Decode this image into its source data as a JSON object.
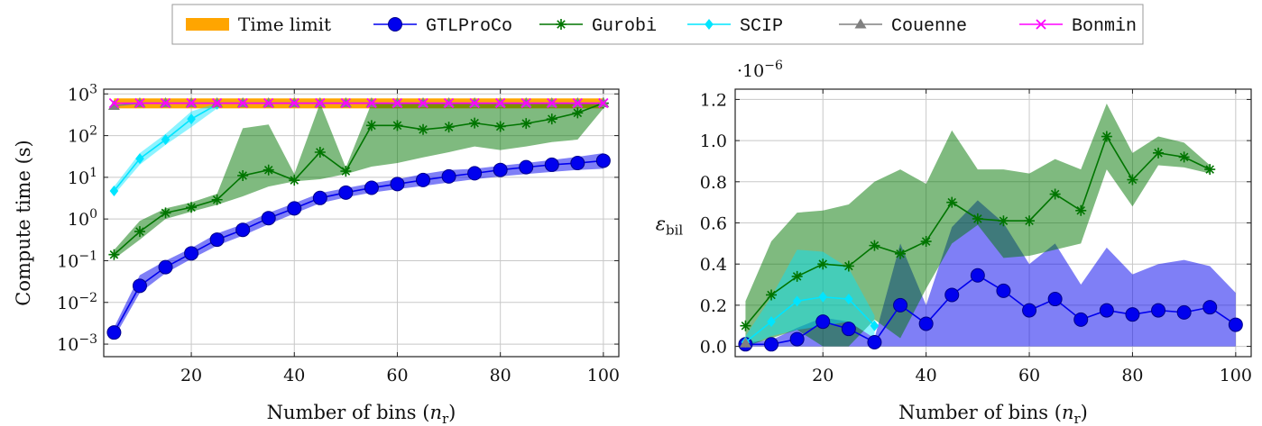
{
  "legend": [
    {
      "label": "Time limit",
      "color": "#ffa500",
      "marker": "bar",
      "mono": false
    },
    {
      "label": "GTLProCo",
      "color": "#0000ee",
      "marker": "circle",
      "mono": true
    },
    {
      "label": "Gurobi",
      "color": "#007500",
      "marker": "star",
      "mono": true
    },
    {
      "label": "SCIP",
      "color": "#00e5ff",
      "marker": "diamond",
      "mono": true
    },
    {
      "label": "Couenne",
      "color": "#808080",
      "marker": "triangle",
      "mono": true
    },
    {
      "label": "Bonmin",
      "color": "#ff00ff",
      "marker": "cross",
      "mono": true
    }
  ],
  "chart_data": [
    {
      "type": "line",
      "xlabel": "Number of bins (n_r)",
      "ylabel": "Compute time (s)",
      "yscale": "log",
      "xlim": [
        3,
        103
      ],
      "ylim": [
        0.0005,
        1300
      ],
      "x_ticks": [
        20,
        40,
        60,
        80,
        100
      ],
      "y_ticks": [
        0.001,
        0.01,
        0.1,
        1,
        10,
        100,
        1000
      ],
      "y_tick_labels": [
        "10^-3",
        "10^-2",
        "10^-1",
        "10^0",
        "10^1",
        "10^2",
        "10^3"
      ],
      "grid": true,
      "time_limit": {
        "x": [
          5,
          100
        ],
        "low": 450,
        "high": 780
      },
      "series": [
        {
          "name": "GTLProCo",
          "color": "#0000ee",
          "marker": "circle",
          "x": [
            5,
            10,
            15,
            20,
            25,
            30,
            35,
            40,
            45,
            50,
            55,
            60,
            65,
            70,
            75,
            80,
            85,
            90,
            95,
            100
          ],
          "y": [
            0.0019,
            0.025,
            0.07,
            0.15,
            0.32,
            0.55,
            1.05,
            1.8,
            3.2,
            4.3,
            5.6,
            6.9,
            8.6,
            10.5,
            12.5,
            15,
            17.5,
            20,
            22,
            25
          ],
          "low": [
            0.0014,
            0.017,
            0.05,
            0.11,
            0.23,
            0.4,
            0.75,
            1.35,
            2.4,
            3.3,
            4.3,
            5.2,
            6.2,
            7.5,
            9,
            10.5,
            12,
            13.5,
            15,
            16
          ],
          "high": [
            0.0025,
            0.045,
            0.1,
            0.2,
            0.45,
            0.75,
            1.4,
            2.4,
            4.2,
            5.5,
            7.2,
            9,
            12,
            15,
            16,
            19,
            22,
            26,
            31,
            38
          ]
        },
        {
          "name": "Gurobi",
          "color": "#007500",
          "marker": "star",
          "x": [
            5,
            10,
            15,
            20,
            25,
            30,
            35,
            40,
            45,
            50,
            55,
            60,
            65,
            70,
            75,
            80,
            85,
            90,
            95,
            100
          ],
          "y": [
            0.14,
            0.5,
            1.4,
            1.9,
            2.9,
            11,
            15,
            8.5,
            40,
            14,
            175,
            175,
            140,
            160,
            200,
            165,
            195,
            250,
            350,
            600
          ],
          "low": [
            0.11,
            0.32,
            1.0,
            1.5,
            2.2,
            3.5,
            6,
            8,
            9,
            12,
            18,
            22,
            30,
            40,
            55,
            45,
            55,
            70,
            80,
            450
          ],
          "high": [
            0.18,
            0.9,
            1.8,
            2.5,
            4,
            150,
            185,
            12,
            600,
            17,
            600,
            600,
            600,
            600,
            600,
            600,
            600,
            600,
            600,
            600
          ]
        },
        {
          "name": "SCIP",
          "color": "#00e5ff",
          "marker": "diamond",
          "x": [
            5,
            10,
            15,
            20,
            25
          ],
          "y": [
            4.7,
            28,
            80,
            250,
            560
          ],
          "low": [
            3.8,
            20,
            60,
            160,
            450
          ],
          "high": [
            6,
            38,
            110,
            380,
            600
          ]
        },
        {
          "name": "Couenne",
          "color": "#808080",
          "marker": "triangle",
          "x": [
            5,
            10,
            15,
            20,
            25,
            30,
            35,
            40,
            45,
            50,
            55,
            60,
            65,
            70,
            75,
            80,
            85,
            90,
            95,
            100
          ],
          "y": [
            520,
            600,
            600,
            600,
            600,
            600,
            600,
            600,
            600,
            600,
            600,
            600,
            600,
            600,
            600,
            600,
            600,
            600,
            600,
            600
          ]
        },
        {
          "name": "Bonmin",
          "color": "#ff00ff",
          "marker": "cross",
          "x": [
            5,
            10,
            15,
            20,
            25,
            30,
            35,
            40,
            45,
            50,
            55,
            60,
            65,
            70,
            75,
            80,
            85,
            90,
            95,
            100
          ],
          "y": [
            600,
            600,
            600,
            600,
            600,
            600,
            600,
            600,
            600,
            600,
            600,
            600,
            600,
            600,
            600,
            600,
            600,
            600,
            600,
            600
          ]
        }
      ]
    },
    {
      "type": "line",
      "xlabel": "Number of bins (n_r)",
      "ylabel": "ε_bil",
      "multiplier": "·10^-6",
      "xlim": [
        3,
        103
      ],
      "ylim": [
        -0.05,
        1.25
      ],
      "x_ticks": [
        20,
        40,
        60,
        80,
        100
      ],
      "y_ticks": [
        0.0,
        0.2,
        0.4,
        0.6,
        0.8,
        1.0,
        1.2
      ],
      "y_tick_labels": [
        "0.0",
        "0.2",
        "0.4",
        "0.6",
        "0.8",
        "1.0",
        "1.2"
      ],
      "grid": true,
      "series": [
        {
          "name": "GTLProCo",
          "color": "#0000ee",
          "marker": "circle",
          "x": [
            5,
            10,
            15,
            20,
            25,
            30,
            35,
            40,
            45,
            50,
            55,
            60,
            65,
            70,
            75,
            80,
            85,
            90,
            95,
            100
          ],
          "y": [
            0.01,
            0.01,
            0.035,
            0.12,
            0.085,
            0.02,
            0.2,
            0.11,
            0.25,
            0.345,
            0.27,
            0.175,
            0.23,
            0.13,
            0.175,
            0.155,
            0.175,
            0.165,
            0.19,
            0.105
          ],
          "low": [
            0.0,
            0.0,
            0.0,
            0.0,
            0.0,
            0.0,
            0.0,
            0.0,
            0.0,
            0.0,
            0.0,
            0.0,
            0.0,
            0.0,
            0.0,
            0.0,
            0.0,
            0.0,
            0.0,
            0.0
          ],
          "high": [
            0.02,
            0.03,
            0.09,
            0.14,
            0.12,
            0.04,
            0.5,
            0.2,
            0.58,
            0.71,
            0.6,
            0.4,
            0.5,
            0.3,
            0.48,
            0.35,
            0.4,
            0.42,
            0.39,
            0.26
          ]
        },
        {
          "name": "Gurobi",
          "color": "#007500",
          "marker": "star",
          "x": [
            5,
            10,
            15,
            20,
            25,
            30,
            35,
            40,
            45,
            50,
            55,
            60,
            65,
            70,
            75,
            80,
            85,
            90,
            95
          ],
          "y": [
            0.1,
            0.25,
            0.34,
            0.4,
            0.39,
            0.49,
            0.45,
            0.51,
            0.7,
            0.62,
            0.61,
            0.61,
            0.74,
            0.66,
            1.02,
            0.81,
            0.94,
            0.92,
            0.86
          ],
          "low": [
            0.0,
            0.04,
            0.08,
            0.0,
            0.0,
            0.13,
            0.04,
            0.28,
            0.5,
            0.59,
            0.43,
            0.44,
            0.47,
            0.5,
            0.86,
            0.68,
            0.88,
            0.87,
            0.84
          ],
          "high": [
            0.22,
            0.51,
            0.65,
            0.66,
            0.69,
            0.8,
            0.86,
            0.79,
            1.05,
            0.86,
            0.86,
            0.84,
            0.91,
            0.86,
            1.18,
            0.94,
            1.02,
            0.99,
            0.88
          ]
        },
        {
          "name": "SCIP",
          "color": "#00e5ff",
          "marker": "diamond",
          "x": [
            5,
            10,
            15,
            20,
            25,
            30
          ],
          "y": [
            0.02,
            0.12,
            0.22,
            0.24,
            0.23,
            0.1
          ],
          "low": [
            0.0,
            0.05,
            0.08,
            0.1,
            0.12,
            0.04
          ],
          "high": [
            0.05,
            0.24,
            0.47,
            0.46,
            0.38,
            0.15
          ]
        },
        {
          "name": "Couenne",
          "color": "#808080",
          "marker": "triangle",
          "x": [
            5
          ],
          "y": [
            0.015
          ]
        }
      ]
    }
  ]
}
